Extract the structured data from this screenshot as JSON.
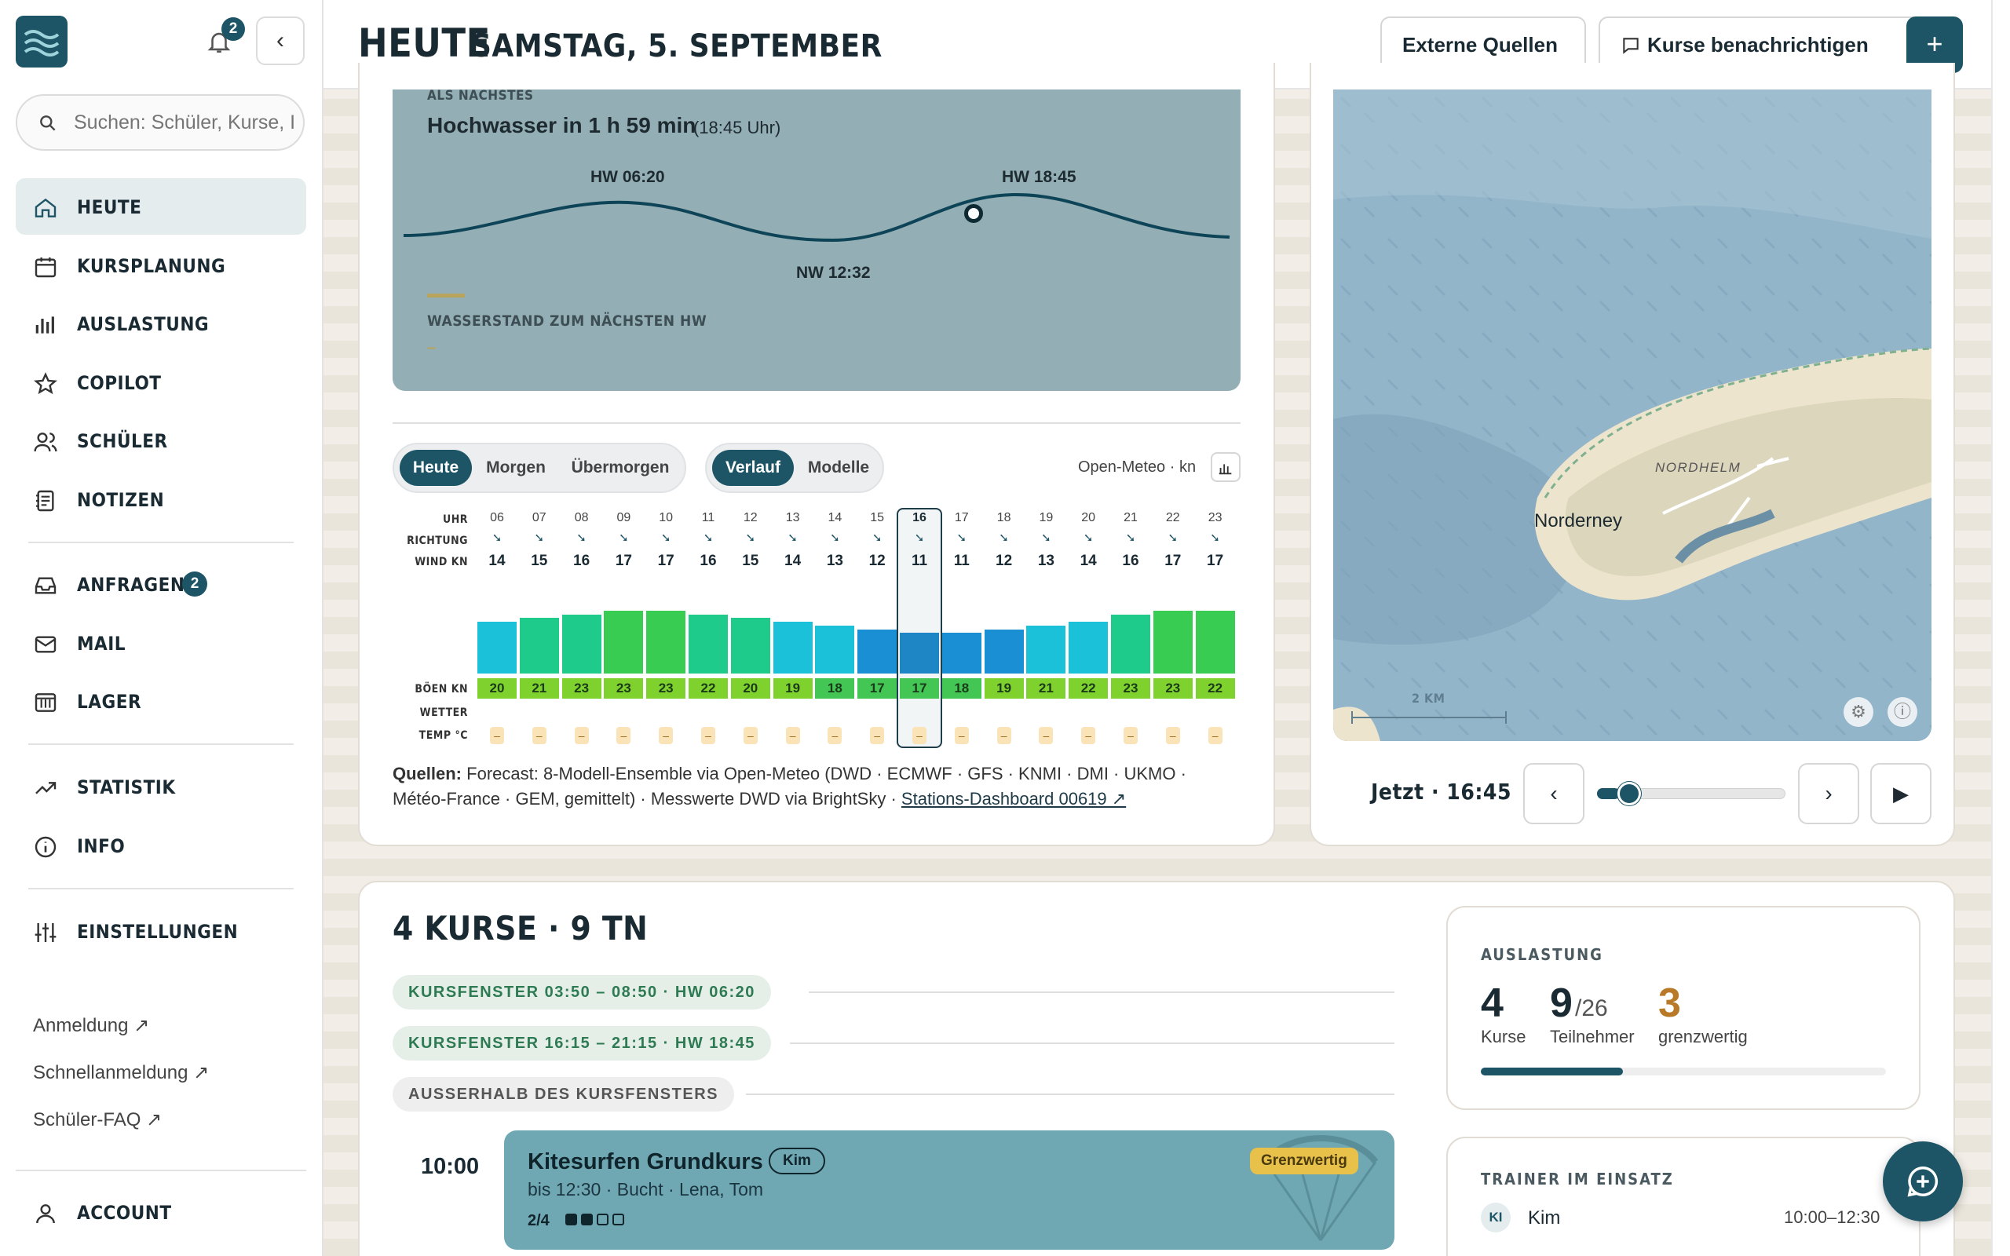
{
  "sidebar": {
    "notifications_count": "2",
    "search_placeholder": "Suchen: Schüler, Kurse, I",
    "items": [
      {
        "label": "HEUTE",
        "icon": "home-icon"
      },
      {
        "label": "KURSPLANUNG",
        "icon": "calendar-icon"
      },
      {
        "label": "AUSLASTUNG",
        "icon": "bar-chart-icon"
      },
      {
        "label": "COPILOT",
        "icon": "star-icon"
      },
      {
        "label": "SCHÜLER",
        "icon": "users-icon"
      },
      {
        "label": "NOTIZEN",
        "icon": "notes-icon"
      },
      {
        "label": "ANFRAGEN",
        "icon": "inbox-icon",
        "badge": "2"
      },
      {
        "label": "MAIL",
        "icon": "mail-icon"
      },
      {
        "label": "LAGER",
        "icon": "warehouse-icon"
      },
      {
        "label": "STATISTIK",
        "icon": "trend-icon"
      },
      {
        "label": "INFO",
        "icon": "info-icon"
      },
      {
        "label": "EINSTELLUNGEN",
        "icon": "sliders-icon"
      }
    ],
    "links": [
      "Anmeldung ↗",
      "Schnellanmeldung ↗",
      "Schüler-FAQ ↗"
    ],
    "account": "ACCOUNT"
  },
  "header": {
    "title": "HEUTE",
    "date": "SAMSTAG, 5. SEPTEMBER",
    "external_sources": "Externe Quellen",
    "notify_courses": "Kurse benachrichtigen",
    "add": "+"
  },
  "tide": {
    "next_label": "ALS NÄCHSTES",
    "headline": "Hochwasser in 1 h 59 min",
    "headline_time": "(18:45 Uhr)",
    "hw1": "HW 06:20",
    "hw2": "HW 18:45",
    "nw": "NW 12:32",
    "level_label": "WASSERSTAND ZUM NÄCHSTEN HW",
    "level_value": "–"
  },
  "forecast": {
    "days": [
      "Heute",
      "Morgen",
      "Übermorgen"
    ],
    "modes": [
      "Verlauf",
      "Modelle"
    ],
    "source_label": "Open-Meteo · kn",
    "row_labels": {
      "uhr": "UHR",
      "richtung": "RICHTUNG",
      "wind": "WIND KN",
      "boeen": "BÖEN KN",
      "wetter": "WETTER",
      "temp": "TEMP °C"
    },
    "hours": [
      "06",
      "07",
      "08",
      "09",
      "10",
      "11",
      "12",
      "13",
      "14",
      "15",
      "16",
      "17",
      "18",
      "19",
      "20",
      "21",
      "22",
      "23"
    ],
    "direction": [
      "➘",
      "➘",
      "➘",
      "➘",
      "➘",
      "➘",
      "➘",
      "➘",
      "➘",
      "➘",
      "➘",
      "➘",
      "➘",
      "➘",
      "➘",
      "➘",
      "➘",
      "➘"
    ],
    "wind": [
      14,
      15,
      16,
      17,
      17,
      16,
      15,
      14,
      13,
      12,
      11,
      11,
      12,
      13,
      14,
      16,
      17,
      17
    ],
    "gusts": [
      20,
      21,
      23,
      23,
      23,
      22,
      20,
      19,
      18,
      17,
      17,
      18,
      19,
      21,
      22,
      23,
      23,
      22
    ],
    "temp": [
      "–",
      "–",
      "–",
      "–",
      "–",
      "–",
      "–",
      "–",
      "–",
      "–",
      "–",
      "–",
      "–",
      "–",
      "–",
      "–",
      "–",
      "–"
    ],
    "selected_hour": "16",
    "sources_label": "Quellen:",
    "sources_line1": "Forecast: 8-Modell-Ensemble via Open-Meteo (DWD · ECMWF · GFS · KNMI · DMI · UKMO ·",
    "sources_line2": "Météo-France · GEM, gemittelt) · Messwerte DWD via BrightSky ·",
    "sources_link": "Stations-Dashboard 00619 ↗"
  },
  "map": {
    "place": "Norderney",
    "district": "NORDHELM",
    "scale": "2 KM",
    "now_label": "Jetzt · 16:45",
    "slider_fraction": 0.12
  },
  "courses": {
    "title": "4 KURSE · 9 TN",
    "windows": [
      {
        "label": "KURSFENSTER 03:50 – 08:50 · HW 06:20"
      },
      {
        "label": "KURSFENSTER 16:15 – 21:15 · HW 18:45"
      },
      {
        "label": "AUSSERHALB DES KURSFENSTERS"
      }
    ],
    "entry": {
      "time": "10:00",
      "name": "Kitesurfen Grundkurs",
      "trainer_tag": "Kim",
      "details": "bis 12:30 · Bucht · Lena, Tom",
      "count": "2/4",
      "warning": "Grenzwertig"
    }
  },
  "auslastung": {
    "label": "AUSLASTUNG",
    "courses_value": "4",
    "courses_label": "Kurse",
    "participants_value": "9",
    "participants_total": "/26",
    "participants_label": "Teilnehmer",
    "borderline_value": "3",
    "borderline_label": "grenzwertig",
    "fill_fraction": 0.35
  },
  "trainer": {
    "label": "TRAINER IM EINSATZ",
    "initials": "KI",
    "name": "Kim",
    "time": "10:00–12:30"
  },
  "colors": {
    "brand": "#1d5566",
    "warning": "#e8c14a",
    "borderline": "#b87a28"
  }
}
